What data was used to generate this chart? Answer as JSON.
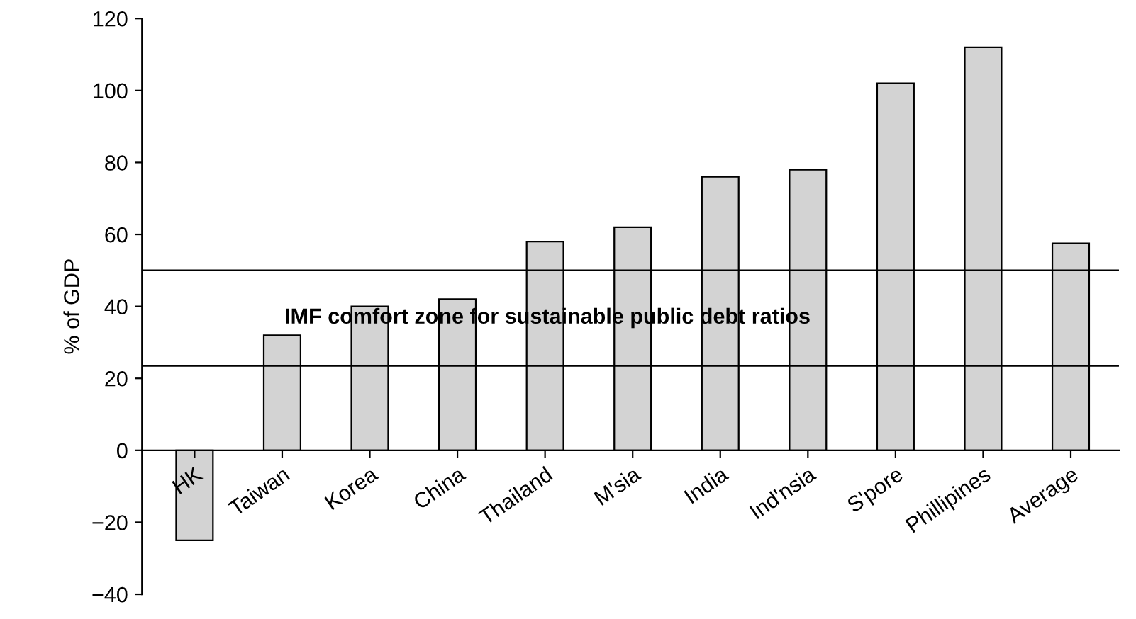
{
  "chart_data": {
    "type": "bar",
    "ylabel": "% of GDP",
    "categories": [
      "HK",
      "Taiwan",
      "Korea",
      "China",
      "Thailand",
      "M'sia",
      "India",
      "Ind'nsia",
      "S'pore",
      "Phillipines",
      "Average"
    ],
    "values": [
      -25,
      32,
      40,
      42,
      58,
      62,
      76,
      78,
      102,
      112,
      57.5
    ],
    "color": "#d3d3d3",
    "ylim": [
      -40,
      120
    ],
    "yticks": [
      {
        "value": -40,
        "label": "−40"
      },
      {
        "value": -20,
        "label": "−20"
      },
      0,
      20,
      40,
      60,
      80,
      100,
      120
    ],
    "ref_lines": [
      {
        "axis": "y",
        "value": 50,
        "color": "#000000"
      },
      {
        "axis": "y",
        "value": 23.5,
        "color": "#000000"
      }
    ],
    "annotations": [
      "IMF comfort zone for sustainable public debt ratios"
    ],
    "grid": false,
    "legend": false
  }
}
